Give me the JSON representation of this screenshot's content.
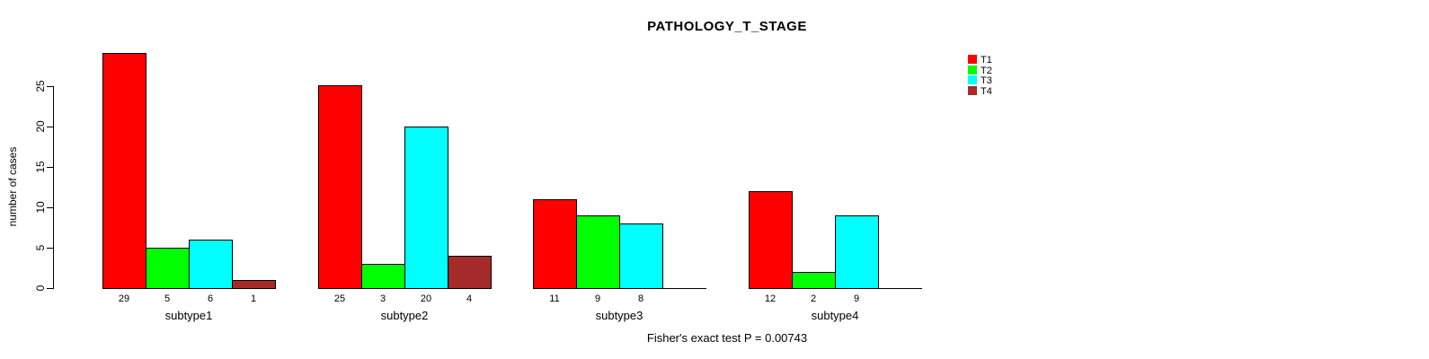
{
  "chart_data": {
    "type": "bar",
    "title": "PATHOLOGY_T_STAGE",
    "ylabel": "number of cases",
    "xlabel": "",
    "categories": [
      "subtype1",
      "subtype2",
      "subtype3",
      "subtype4"
    ],
    "series": [
      {
        "name": "T1",
        "color": "#FF0000",
        "values": [
          29,
          25,
          11,
          12
        ]
      },
      {
        "name": "T2",
        "color": "#00FF00",
        "values": [
          5,
          3,
          9,
          2
        ]
      },
      {
        "name": "T3",
        "color": "#00FFFF",
        "values": [
          6,
          20,
          8,
          9
        ]
      },
      {
        "name": "T4",
        "color": "#A52A2A",
        "values": [
          1,
          4,
          0,
          0
        ]
      }
    ],
    "yticks": [
      0,
      5,
      10,
      15,
      20,
      25
    ],
    "ylim": [
      0,
      29
    ],
    "grid": false,
    "legend_position": "top-right",
    "bar_value_labels_shown": true,
    "annotation": "Fisher's exact test P = 0.00743"
  }
}
